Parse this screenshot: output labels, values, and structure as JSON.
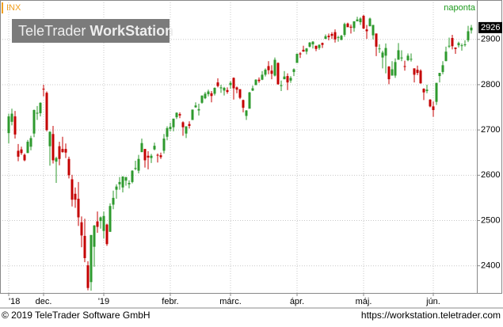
{
  "chart_data": {
    "type": "candlestick",
    "symbol": "INX",
    "interval": "naponta",
    "watermark_regular": "TeleTrader",
    "watermark_bold": "WorkStation",
    "footer_left": "© 2019 TeleTrader Software GmbH",
    "footer_right": "https://workstation.teletrader.com",
    "up_color": "#2e9a2e",
    "down_color": "#c40000",
    "grid": true,
    "ylim": [
      2340,
      2987
    ],
    "yticks": [
      2400,
      2500,
      2600,
      2700,
      2800,
      2900
    ],
    "xticks": [
      {
        "value": 0,
        "label": "'18"
      },
      {
        "value": 11,
        "label": "dec."
      },
      {
        "value": 30,
        "label": "'19"
      },
      {
        "value": 51,
        "label": "febr."
      },
      {
        "value": 70,
        "label": "márc."
      },
      {
        "value": 91,
        "label": "ápr."
      },
      {
        "value": 112,
        "label": "máj."
      },
      {
        "value": 134,
        "label": "jún."
      }
    ],
    "series": [
      {
        "name": "INX",
        "open": [
          2693,
          2718,
          2730,
          2654,
          2657,
          2645,
          2649,
          2663,
          2692,
          2736,
          2737,
          2791,
          2782,
          2664,
          2691,
          2630,
          2664,
          2658,
          2658,
          2636,
          2591,
          2559,
          2548,
          2496,
          2466,
          2401,
          2364,
          2442,
          2498,
          2499,
          2477,
          2491,
          2475,
          2535,
          2568,
          2580,
          2573,
          2588,
          2580,
          2585,
          2614,
          2610,
          2651,
          2658,
          2643,
          2638,
          2657,
          2645,
          2644,
          2654,
          2685,
          2702,
          2706,
          2728,
          2735,
          2717,
          2692,
          2713,
          2722,
          2750,
          2743,
          2760,
          2770,
          2779,
          2781,
          2780,
          2805,
          2792,
          2787,
          2788,
          2799,
          2815,
          2794,
          2790,
          2766,
          2731,
          2747,
          2787,
          2799,
          2811,
          2811,
          2822,
          2841,
          2831,
          2820,
          2848,
          2797,
          2812,
          2819,
          2809,
          2828,
          2848,
          2869,
          2877,
          2873,
          2884,
          2889,
          2886,
          2881,
          2892,
          2901,
          2908,
          2912,
          2916,
          2904,
          2899,
          2910,
          2935,
          2928,
          2925,
          2940,
          2938,
          2952,
          2922,
          2929,
          2909,
          2913,
          2879,
          2860,
          2864,
          2840,
          2820,
          2820,
          2855,
          2858,
          2841,
          2854,
          2856,
          2836,
          2833,
          2831,
          2791,
          2786,
          2767,
          2752,
          2762,
          2819,
          2828,
          2852,
          2885,
          2903,
          2882,
          2887,
          2886,
          2888,
          2898,
          2920
        ],
        "high": [
          2736,
          2747,
          2742,
          2669,
          2663,
          2648,
          2678,
          2687,
          2745,
          2753,
          2761,
          2800,
          2785,
          2697,
          2709,
          2641,
          2674,
          2685,
          2670,
          2641,
          2601,
          2573,
          2585,
          2509,
          2504,
          2410,
          2468,
          2490,
          2520,
          2509,
          2520,
          2493,
          2538,
          2566,
          2580,
          2596,
          2598,
          2596,
          2589,
          2611,
          2632,
          2645,
          2681,
          2658,
          2653,
          2647,
          2672,
          2648,
          2650,
          2691,
          2708,
          2716,
          2725,
          2739,
          2739,
          2719,
          2708,
          2719,
          2745,
          2761,
          2758,
          2776,
          2784,
          2789,
          2786,
          2794,
          2814,
          2800,
          2795,
          2794,
          2808,
          2816,
          2796,
          2790,
          2767,
          2744,
          2784,
          2798,
          2812,
          2816,
          2830,
          2836,
          2852,
          2843,
          2860,
          2849,
          2809,
          2830,
          2825,
          2819,
          2836,
          2869,
          2872,
          2886,
          2881,
          2894,
          2896,
          2886,
          2889,
          2893,
          2911,
          2913,
          2916,
          2922,
          2908,
          2910,
          2937,
          2937,
          2933,
          2940,
          2950,
          2949,
          2954,
          2932,
          2948,
          2932,
          2913,
          2889,
          2875,
          2891,
          2841,
          2852,
          2858,
          2892,
          2876,
          2853,
          2869,
          2869,
          2836,
          2842,
          2834,
          2792,
          2800,
          2768,
          2763,
          2804,
          2826,
          2852,
          2884,
          2904,
          2910,
          2882,
          2895,
          2891,
          2898,
          2930,
          2932
        ],
        "low": [
          2670,
          2710,
          2681,
          2631,
          2645,
          2631,
          2649,
          2655,
          2684,
          2722,
          2730,
          2774,
          2697,
          2621,
          2626,
          2583,
          2622,
          2650,
          2638,
          2593,
          2531,
          2528,
          2488,
          2441,
          2408,
          2346,
          2345,
          2398,
          2473,
          2482,
          2460,
          2444,
          2475,
          2525,
          2548,
          2568,
          2562,
          2577,
          2571,
          2582,
          2611,
          2604,
          2651,
          2617,
          2613,
          2627,
          2655,
          2628,
          2636,
          2648,
          2677,
          2697,
          2697,
          2724,
          2726,
          2687,
          2682,
          2703,
          2722,
          2749,
          2732,
          2758,
          2768,
          2774,
          2761,
          2776,
          2794,
          2782,
          2776,
          2780,
          2791,
          2767,
          2781,
          2768,
          2739,
          2722,
          2747,
          2786,
          2799,
          2804,
          2810,
          2818,
          2823,
          2812,
          2818,
          2800,
          2786,
          2812,
          2788,
          2804,
          2819,
          2848,
          2859,
          2873,
          2867,
          2882,
          2880,
          2874,
          2877,
          2881,
          2901,
          2898,
          2901,
          2893,
          2895,
          2898,
          2906,
          2927,
          2913,
          2917,
          2940,
          2932,
          2923,
          2901,
          2929,
          2900,
          2863,
          2870,
          2836,
          2825,
          2801,
          2820,
          2815,
          2855,
          2852,
          2831,
          2852,
          2851,
          2805,
          2821,
          2802,
          2766,
          2781,
          2750,
          2729,
          2755,
          2805,
          2823,
          2852,
          2881,
          2878,
          2868,
          2882,
          2875,
          2884,
          2894,
          2913
        ],
        "close": [
          2730,
          2736,
          2690,
          2641,
          2649,
          2633,
          2674,
          2682,
          2744,
          2738,
          2760,
          2790,
          2700,
          2696,
          2633,
          2638,
          2636,
          2651,
          2650,
          2600,
          2546,
          2546,
          2507,
          2467,
          2417,
          2351,
          2468,
          2489,
          2486,
          2507,
          2510,
          2448,
          2532,
          2550,
          2575,
          2585,
          2597,
          2596,
          2583,
          2610,
          2616,
          2636,
          2671,
          2633,
          2639,
          2643,
          2665,
          2644,
          2640,
          2681,
          2704,
          2707,
          2725,
          2738,
          2732,
          2706,
          2708,
          2709,
          2745,
          2754,
          2746,
          2776,
          2780,
          2785,
          2775,
          2793,
          2797,
          2794,
          2793,
          2784,
          2804,
          2792,
          2789,
          2771,
          2749,
          2743,
          2783,
          2792,
          2811,
          2808,
          2822,
          2833,
          2832,
          2824,
          2855,
          2801,
          2799,
          2818,
          2805,
          2815,
          2834,
          2868,
          2867,
          2873,
          2880,
          2893,
          2895,
          2879,
          2888,
          2888,
          2907,
          2905,
          2908,
          2900,
          2905,
          2908,
          2934,
          2927,
          2926,
          2940,
          2944,
          2946,
          2924,
          2918,
          2946,
          2932,
          2884,
          2880,
          2871,
          2881,
          2812,
          2834,
          2850,
          2876,
          2860,
          2840,
          2864,
          2857,
          2822,
          2826,
          2803,
          2783,
          2789,
          2752,
          2744,
          2804,
          2826,
          2843,
          2873,
          2886,
          2885,
          2879,
          2892,
          2887,
          2889,
          2918,
          2926
        ]
      }
    ]
  }
}
